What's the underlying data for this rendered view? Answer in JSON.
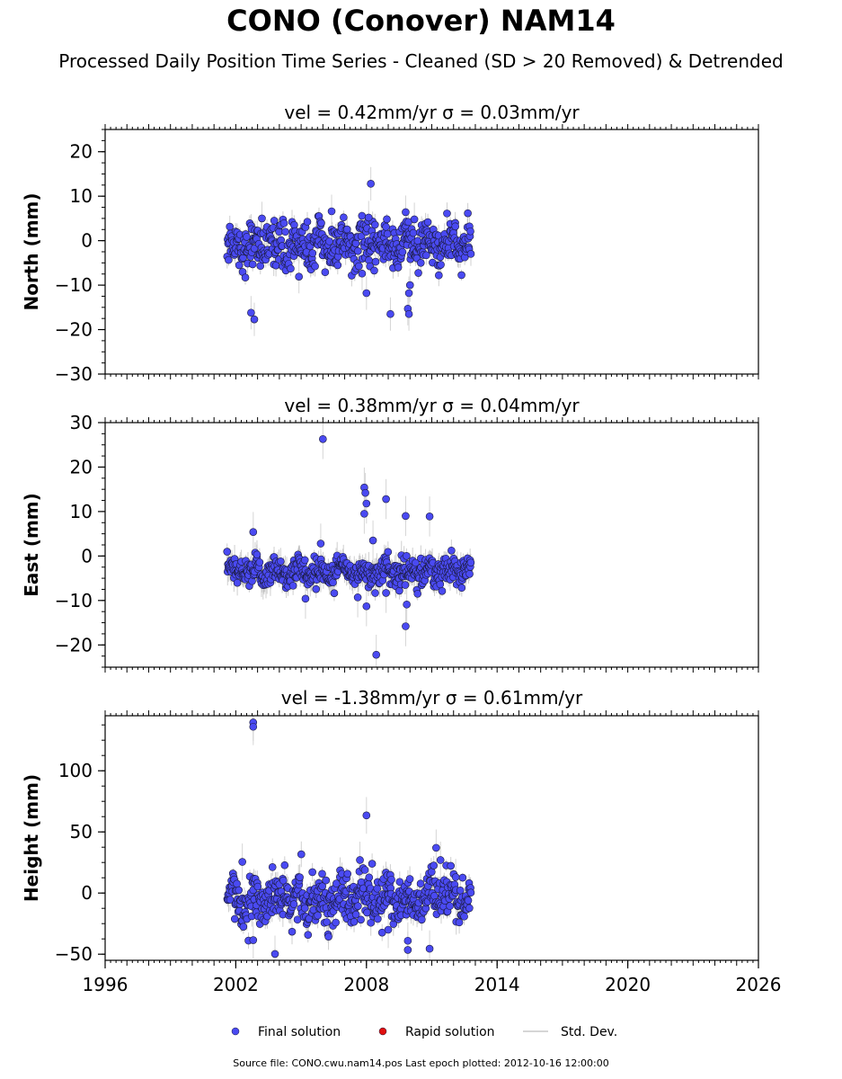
{
  "title": "CONO (Conover) NAM14",
  "subtitle": "Processed Daily Position Time Series - Cleaned (SD > 20 Removed) & Detrended",
  "footnote": "Source file: CONO.cwu.nam14.pos  Last epoch plotted: 2012-10-16 12:00:00",
  "colors": {
    "final": "#4a4af2",
    "rapid": "#e01010",
    "stddev": "#c8c8c8"
  },
  "chart_data": [
    {
      "type": "scatter",
      "title": "vel = 0.42mm/yr   σ = 0.03mm/yr",
      "ylabel": "North (mm)",
      "xlim": [
        1996,
        2026
      ],
      "ylim": [
        -30,
        25
      ],
      "yticks": [
        -30,
        -20,
        -10,
        0,
        10,
        20
      ],
      "data_range": [
        2001.6,
        2012.8
      ],
      "series": [
        {
          "name": "Final solution",
          "summary": {
            "center": -1,
            "spread": 2.5,
            "sigma": 1.5
          },
          "points": [
            {
              "x": 2002.7,
              "y": -16.2
            },
            {
              "x": 2002.85,
              "y": -17.7
            },
            {
              "x": 2008.2,
              "y": 12.8
            },
            {
              "x": 2008.0,
              "y": -11.8
            },
            {
              "x": 2007.8,
              "y": -7.4
            },
            {
              "x": 2006.4,
              "y": 6.6
            },
            {
              "x": 2009.1,
              "y": -16.5
            },
            {
              "x": 2009.9,
              "y": -15.3
            },
            {
              "x": 2009.95,
              "y": -16.5
            },
            {
              "x": 2009.95,
              "y": -11.8
            },
            {
              "x": 2010.0,
              "y": -10.0
            },
            {
              "x": 2010.2,
              "y": 4.8
            },
            {
              "x": 2004.9,
              "y": -8.1
            },
            {
              "x": 2003.2,
              "y": 5.0
            },
            {
              "x": 2009.8,
              "y": 6.4
            },
            {
              "x": 2008.1,
              "y": 5.2
            }
          ]
        }
      ]
    },
    {
      "type": "scatter",
      "title": "vel = 0.38mm/yr   σ = 0.04mm/yr",
      "ylabel": "East (mm)",
      "xlim": [
        1996,
        2026
      ],
      "ylim": [
        -25,
        30
      ],
      "yticks": [
        -20,
        -10,
        0,
        10,
        20,
        30
      ],
      "data_range": [
        2001.6,
        2012.8
      ],
      "series": [
        {
          "name": "Final solution",
          "summary": {
            "center": -3.5,
            "spread": 1.6,
            "sigma": 1.8
          },
          "points": [
            {
              "x": 2006.0,
              "y": 26.3
            },
            {
              "x": 2007.9,
              "y": 15.4
            },
            {
              "x": 2007.95,
              "y": 14.2
            },
            {
              "x": 2008.0,
              "y": 11.8
            },
            {
              "x": 2007.9,
              "y": 9.5
            },
            {
              "x": 2008.9,
              "y": 12.8
            },
            {
              "x": 2009.8,
              "y": 9.0
            },
            {
              "x": 2010.9,
              "y": 8.9
            },
            {
              "x": 2008.45,
              "y": -22.2
            },
            {
              "x": 2009.8,
              "y": -15.8
            },
            {
              "x": 2009.85,
              "y": -10.9
            },
            {
              "x": 2008.0,
              "y": -11.3
            },
            {
              "x": 2007.6,
              "y": -9.3
            },
            {
              "x": 2005.2,
              "y": -9.6
            },
            {
              "x": 2002.8,
              "y": 5.4
            },
            {
              "x": 2005.9,
              "y": 2.8
            },
            {
              "x": 2008.3,
              "y": 3.5
            },
            {
              "x": 2008.9,
              "y": -8.3
            }
          ]
        }
      ]
    },
    {
      "type": "scatter",
      "title": "vel = -1.38mm/yr   σ = 0.61mm/yr",
      "ylabel": "Height (mm)",
      "xlim": [
        1996,
        2026
      ],
      "ylim": [
        -55,
        145
      ],
      "yticks": [
        -50,
        0,
        50,
        100
      ],
      "xticks": [
        1996,
        2002,
        2008,
        2014,
        2020,
        2026
      ],
      "data_range": [
        2001.6,
        2012.8
      ],
      "series": [
        {
          "name": "Final solution",
          "summary": {
            "center": -5,
            "spread": 10,
            "sigma": 6
          },
          "points": [
            {
              "x": 2002.8,
              "y": 139.5
            },
            {
              "x": 2002.8,
              "y": 136.0
            },
            {
              "x": 2008.0,
              "y": 63.5
            },
            {
              "x": 2011.2,
              "y": 37.0
            },
            {
              "x": 2011.4,
              "y": 27.0
            },
            {
              "x": 2003.8,
              "y": -49.8
            },
            {
              "x": 2009.9,
              "y": -46.5
            },
            {
              "x": 2010.9,
              "y": -45.5
            },
            {
              "x": 2009.9,
              "y": -39.0
            },
            {
              "x": 2002.8,
              "y": -38.5
            },
            {
              "x": 2002.3,
              "y": 25.5
            },
            {
              "x": 2007.7,
              "y": 27.0
            },
            {
              "x": 2009.0,
              "y": -30.0
            },
            {
              "x": 2012.1,
              "y": 13.0
            }
          ]
        }
      ]
    }
  ],
  "legend": {
    "placement": "bottom-center",
    "items": [
      {
        "label": "Final solution",
        "marker": "dot",
        "color": "#4a4af2"
      },
      {
        "label": "Rapid solution",
        "marker": "dot",
        "color": "#e01010"
      },
      {
        "label": "Std. Dev.",
        "marker": "line",
        "color": "#c8c8c8"
      }
    ]
  }
}
